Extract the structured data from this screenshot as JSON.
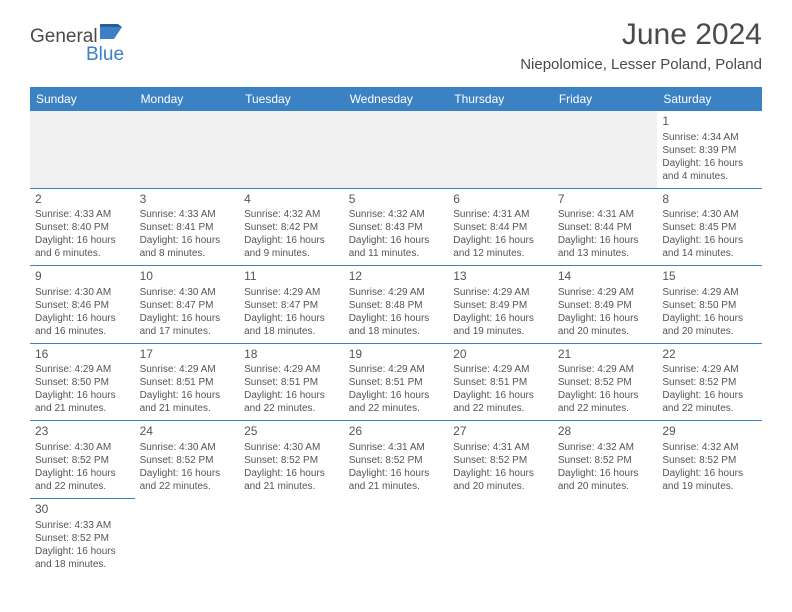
{
  "logo": {
    "part1": "General",
    "part2": "Blue"
  },
  "title": "June 2024",
  "location": "Niepolomice, Lesser Poland, Poland",
  "colors": {
    "header_bg": "#3b82c4",
    "header_text": "#ffffff",
    "border": "#3b82c4",
    "text": "#555555",
    "title_text": "#4a4a4a",
    "logo_blue": "#3b7fc4"
  },
  "day_headers": [
    "Sunday",
    "Monday",
    "Tuesday",
    "Wednesday",
    "Thursday",
    "Friday",
    "Saturday"
  ],
  "weeks": [
    [
      null,
      null,
      null,
      null,
      null,
      null,
      {
        "n": "1",
        "sr": "Sunrise: 4:34 AM",
        "ss": "Sunset: 8:39 PM",
        "d1": "Daylight: 16 hours",
        "d2": "and 4 minutes."
      }
    ],
    [
      {
        "n": "2",
        "sr": "Sunrise: 4:33 AM",
        "ss": "Sunset: 8:40 PM",
        "d1": "Daylight: 16 hours",
        "d2": "and 6 minutes."
      },
      {
        "n": "3",
        "sr": "Sunrise: 4:33 AM",
        "ss": "Sunset: 8:41 PM",
        "d1": "Daylight: 16 hours",
        "d2": "and 8 minutes."
      },
      {
        "n": "4",
        "sr": "Sunrise: 4:32 AM",
        "ss": "Sunset: 8:42 PM",
        "d1": "Daylight: 16 hours",
        "d2": "and 9 minutes."
      },
      {
        "n": "5",
        "sr": "Sunrise: 4:32 AM",
        "ss": "Sunset: 8:43 PM",
        "d1": "Daylight: 16 hours",
        "d2": "and 11 minutes."
      },
      {
        "n": "6",
        "sr": "Sunrise: 4:31 AM",
        "ss": "Sunset: 8:44 PM",
        "d1": "Daylight: 16 hours",
        "d2": "and 12 minutes."
      },
      {
        "n": "7",
        "sr": "Sunrise: 4:31 AM",
        "ss": "Sunset: 8:44 PM",
        "d1": "Daylight: 16 hours",
        "d2": "and 13 minutes."
      },
      {
        "n": "8",
        "sr": "Sunrise: 4:30 AM",
        "ss": "Sunset: 8:45 PM",
        "d1": "Daylight: 16 hours",
        "d2": "and 14 minutes."
      }
    ],
    [
      {
        "n": "9",
        "sr": "Sunrise: 4:30 AM",
        "ss": "Sunset: 8:46 PM",
        "d1": "Daylight: 16 hours",
        "d2": "and 16 minutes."
      },
      {
        "n": "10",
        "sr": "Sunrise: 4:30 AM",
        "ss": "Sunset: 8:47 PM",
        "d1": "Daylight: 16 hours",
        "d2": "and 17 minutes."
      },
      {
        "n": "11",
        "sr": "Sunrise: 4:29 AM",
        "ss": "Sunset: 8:47 PM",
        "d1": "Daylight: 16 hours",
        "d2": "and 18 minutes."
      },
      {
        "n": "12",
        "sr": "Sunrise: 4:29 AM",
        "ss": "Sunset: 8:48 PM",
        "d1": "Daylight: 16 hours",
        "d2": "and 18 minutes."
      },
      {
        "n": "13",
        "sr": "Sunrise: 4:29 AM",
        "ss": "Sunset: 8:49 PM",
        "d1": "Daylight: 16 hours",
        "d2": "and 19 minutes."
      },
      {
        "n": "14",
        "sr": "Sunrise: 4:29 AM",
        "ss": "Sunset: 8:49 PM",
        "d1": "Daylight: 16 hours",
        "d2": "and 20 minutes."
      },
      {
        "n": "15",
        "sr": "Sunrise: 4:29 AM",
        "ss": "Sunset: 8:50 PM",
        "d1": "Daylight: 16 hours",
        "d2": "and 20 minutes."
      }
    ],
    [
      {
        "n": "16",
        "sr": "Sunrise: 4:29 AM",
        "ss": "Sunset: 8:50 PM",
        "d1": "Daylight: 16 hours",
        "d2": "and 21 minutes."
      },
      {
        "n": "17",
        "sr": "Sunrise: 4:29 AM",
        "ss": "Sunset: 8:51 PM",
        "d1": "Daylight: 16 hours",
        "d2": "and 21 minutes."
      },
      {
        "n": "18",
        "sr": "Sunrise: 4:29 AM",
        "ss": "Sunset: 8:51 PM",
        "d1": "Daylight: 16 hours",
        "d2": "and 22 minutes."
      },
      {
        "n": "19",
        "sr": "Sunrise: 4:29 AM",
        "ss": "Sunset: 8:51 PM",
        "d1": "Daylight: 16 hours",
        "d2": "and 22 minutes."
      },
      {
        "n": "20",
        "sr": "Sunrise: 4:29 AM",
        "ss": "Sunset: 8:51 PM",
        "d1": "Daylight: 16 hours",
        "d2": "and 22 minutes."
      },
      {
        "n": "21",
        "sr": "Sunrise: 4:29 AM",
        "ss": "Sunset: 8:52 PM",
        "d1": "Daylight: 16 hours",
        "d2": "and 22 minutes."
      },
      {
        "n": "22",
        "sr": "Sunrise: 4:29 AM",
        "ss": "Sunset: 8:52 PM",
        "d1": "Daylight: 16 hours",
        "d2": "and 22 minutes."
      }
    ],
    [
      {
        "n": "23",
        "sr": "Sunrise: 4:30 AM",
        "ss": "Sunset: 8:52 PM",
        "d1": "Daylight: 16 hours",
        "d2": "and 22 minutes."
      },
      {
        "n": "24",
        "sr": "Sunrise: 4:30 AM",
        "ss": "Sunset: 8:52 PM",
        "d1": "Daylight: 16 hours",
        "d2": "and 22 minutes."
      },
      {
        "n": "25",
        "sr": "Sunrise: 4:30 AM",
        "ss": "Sunset: 8:52 PM",
        "d1": "Daylight: 16 hours",
        "d2": "and 21 minutes."
      },
      {
        "n": "26",
        "sr": "Sunrise: 4:31 AM",
        "ss": "Sunset: 8:52 PM",
        "d1": "Daylight: 16 hours",
        "d2": "and 21 minutes."
      },
      {
        "n": "27",
        "sr": "Sunrise: 4:31 AM",
        "ss": "Sunset: 8:52 PM",
        "d1": "Daylight: 16 hours",
        "d2": "and 20 minutes."
      },
      {
        "n": "28",
        "sr": "Sunrise: 4:32 AM",
        "ss": "Sunset: 8:52 PM",
        "d1": "Daylight: 16 hours",
        "d2": "and 20 minutes."
      },
      {
        "n": "29",
        "sr": "Sunrise: 4:32 AM",
        "ss": "Sunset: 8:52 PM",
        "d1": "Daylight: 16 hours",
        "d2": "and 19 minutes."
      }
    ],
    [
      {
        "n": "30",
        "sr": "Sunrise: 4:33 AM",
        "ss": "Sunset: 8:52 PM",
        "d1": "Daylight: 16 hours",
        "d2": "and 18 minutes."
      },
      null,
      null,
      null,
      null,
      null,
      null
    ]
  ]
}
